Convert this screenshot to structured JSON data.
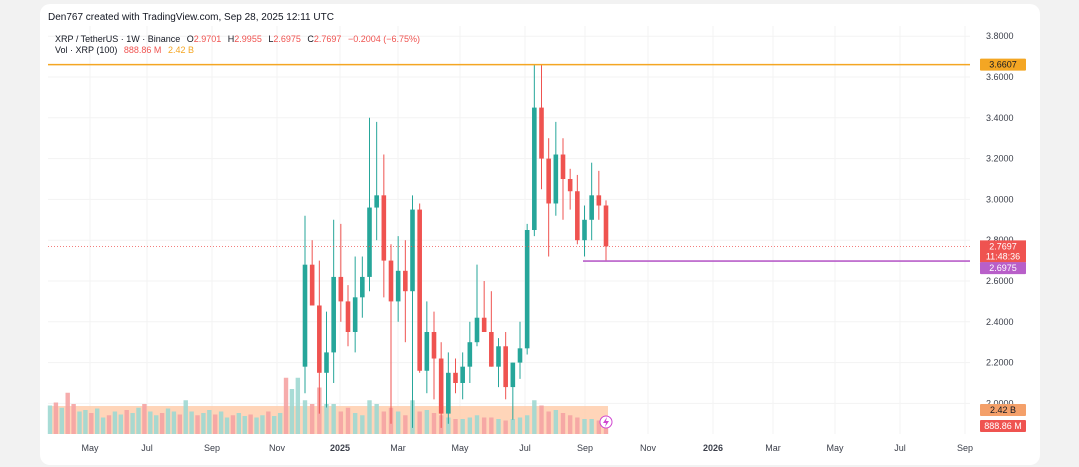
{
  "header": {
    "attribution": "Den767 created with TradingView.com, Sep 28, 2025 12:11 UTC",
    "symbol": "XRP / TetherUS · 1W · Binance",
    "o_label": "O",
    "o_value": "2.9701",
    "h_label": "H",
    "h_value": "2.9955",
    "l_label": "L",
    "l_value": "2.6975",
    "c_label": "C",
    "c_value": "2.7697",
    "change": "−0.2004 (−6.75%)",
    "vol_label": "Vol · XRP (100)",
    "vol_value1": "888.86 M",
    "vol_value2": "2.42 B"
  },
  "colors": {
    "up": "#26a69a",
    "down": "#ef5350",
    "up_vol": "#9fd8d1",
    "down_vol": "#f5a3a3",
    "resistance": "#f4a623",
    "support": "#b85fc9",
    "vol_ma": "#ffcaa8",
    "text": "#131722",
    "axis_text": "#3b3f4a"
  },
  "chart_data": {
    "type": "candlestick",
    "symbol": "XRP / TetherUS",
    "timeframe": "1W",
    "y_ticks": [
      "3.8000",
      "3.6000",
      "3.4000",
      "3.2000",
      "3.0000",
      "2.8000",
      "2.6000",
      "2.4000",
      "2.2000",
      "2.0000"
    ],
    "x_ticks": [
      "May",
      "Jul",
      "Sep",
      "Nov",
      "2025",
      "Mar",
      "May",
      "Jul",
      "Sep",
      "Nov",
      "2026",
      "Mar",
      "May",
      "Jul",
      "Sep"
    ],
    "ylim": [
      1.85,
      3.85
    ],
    "price_labels": [
      {
        "text": "3.6607",
        "value": 3.6607,
        "kind": "resistance"
      },
      {
        "text": "2.7697",
        "value": 2.7697,
        "kind": "last"
      },
      {
        "text": "11:48:36",
        "value": 2.7697,
        "kind": "countdown"
      },
      {
        "text": "2.6975",
        "value": 2.6975,
        "kind": "support"
      },
      {
        "text": "2.42 B",
        "value": null,
        "kind": "vol_ma"
      },
      {
        "text": "888.86 M",
        "value": null,
        "kind": "volume"
      }
    ],
    "horizontal_lines": [
      {
        "name": "resistance",
        "value": 3.6607
      },
      {
        "name": "support",
        "value": 2.6975
      },
      {
        "name": "last",
        "value": 2.7697
      }
    ],
    "candles": [
      {
        "o": 2.18,
        "h": 2.92,
        "l": 2.05,
        "c": 2.68
      },
      {
        "o": 2.68,
        "h": 2.8,
        "l": 2.48,
        "c": 2.48
      },
      {
        "o": 2.48,
        "h": 2.7,
        "l": 1.95,
        "c": 2.15
      },
      {
        "o": 2.15,
        "h": 2.45,
        "l": 1.98,
        "c": 2.25
      },
      {
        "o": 2.25,
        "h": 2.9,
        "l": 2.1,
        "c": 2.62
      },
      {
        "o": 2.62,
        "h": 2.88,
        "l": 2.4,
        "c": 2.5
      },
      {
        "o": 2.5,
        "h": 2.58,
        "l": 2.28,
        "c": 2.35
      },
      {
        "o": 2.35,
        "h": 2.72,
        "l": 2.25,
        "c": 2.52
      },
      {
        "o": 2.52,
        "h": 2.72,
        "l": 2.42,
        "c": 2.62
      },
      {
        "o": 2.62,
        "h": 3.4,
        "l": 2.55,
        "c": 2.96
      },
      {
        "o": 2.96,
        "h": 3.38,
        "l": 2.8,
        "c": 3.02
      },
      {
        "o": 3.02,
        "h": 3.22,
        "l": 2.52,
        "c": 2.7
      },
      {
        "o": 2.7,
        "h": 2.78,
        "l": 1.9,
        "c": 2.5
      },
      {
        "o": 2.5,
        "h": 2.82,
        "l": 2.4,
        "c": 2.65
      },
      {
        "o": 2.65,
        "h": 2.8,
        "l": 2.3,
        "c": 2.55
      },
      {
        "o": 2.55,
        "h": 3.02,
        "l": 1.88,
        "c": 2.95
      },
      {
        "o": 2.95,
        "h": 2.98,
        "l": 2.15,
        "c": 2.16
      },
      {
        "o": 2.16,
        "h": 2.5,
        "l": 2.05,
        "c": 2.35
      },
      {
        "o": 2.35,
        "h": 2.45,
        "l": 2.02,
        "c": 2.22
      },
      {
        "o": 2.22,
        "h": 2.3,
        "l": 1.88,
        "c": 1.95
      },
      {
        "o": 1.95,
        "h": 2.25,
        "l": 1.9,
        "c": 2.15
      },
      {
        "o": 2.15,
        "h": 2.22,
        "l": 2.05,
        "c": 2.1
      },
      {
        "o": 2.1,
        "h": 2.25,
        "l": 2.02,
        "c": 2.18
      },
      {
        "o": 2.18,
        "h": 2.4,
        "l": 2.1,
        "c": 2.3
      },
      {
        "o": 2.3,
        "h": 2.68,
        "l": 2.28,
        "c": 2.42
      },
      {
        "o": 2.42,
        "h": 2.6,
        "l": 2.35,
        "c": 2.35
      },
      {
        "o": 2.35,
        "h": 2.55,
        "l": 2.18,
        "c": 2.18
      },
      {
        "o": 2.18,
        "h": 2.32,
        "l": 2.08,
        "c": 2.28
      },
      {
        "o": 2.28,
        "h": 2.35,
        "l": 2.02,
        "c": 2.08
      },
      {
        "o": 2.08,
        "h": 2.2,
        "l": 1.92,
        "c": 2.2
      },
      {
        "o": 2.2,
        "h": 2.4,
        "l": 2.12,
        "c": 2.27
      },
      {
        "o": 2.27,
        "h": 2.88,
        "l": 2.24,
        "c": 2.85
      },
      {
        "o": 2.85,
        "h": 3.66,
        "l": 2.82,
        "c": 3.45
      },
      {
        "o": 3.45,
        "h": 3.66,
        "l": 3.05,
        "c": 3.2
      },
      {
        "o": 3.2,
        "h": 3.3,
        "l": 2.72,
        "c": 2.98
      },
      {
        "o": 2.98,
        "h": 3.38,
        "l": 2.92,
        "c": 3.22
      },
      {
        "o": 3.22,
        "h": 3.3,
        "l": 2.9,
        "c": 3.1
      },
      {
        "o": 3.1,
        "h": 3.15,
        "l": 2.95,
        "c": 3.04
      },
      {
        "o": 3.04,
        "h": 3.12,
        "l": 2.78,
        "c": 2.8
      },
      {
        "o": 2.8,
        "h": 2.97,
        "l": 2.72,
        "c": 2.9
      },
      {
        "o": 2.9,
        "h": 3.18,
        "l": 2.8,
        "c": 3.02
      },
      {
        "o": 3.02,
        "h": 3.14,
        "l": 2.9,
        "c": 2.97
      },
      {
        "o": 2.9701,
        "h": 2.9955,
        "l": 2.6975,
        "c": 2.7697
      }
    ],
    "volumes": [
      0.45,
      0.4,
      0.62,
      0.4,
      0.4,
      0.3,
      0.35,
      0.28,
      0.25,
      0.45,
      0.4,
      0.3,
      0.35,
      0.3,
      0.25,
      0.45,
      0.3,
      0.32,
      0.28,
      0.25,
      0.22,
      0.2,
      0.2,
      0.22,
      0.25,
      0.22,
      0.22,
      0.2,
      0.18,
      0.2,
      0.22,
      0.25,
      0.45,
      0.38,
      0.3,
      0.32,
      0.28,
      0.25,
      0.22,
      0.2,
      0.2,
      0.18,
      0.15
    ]
  }
}
